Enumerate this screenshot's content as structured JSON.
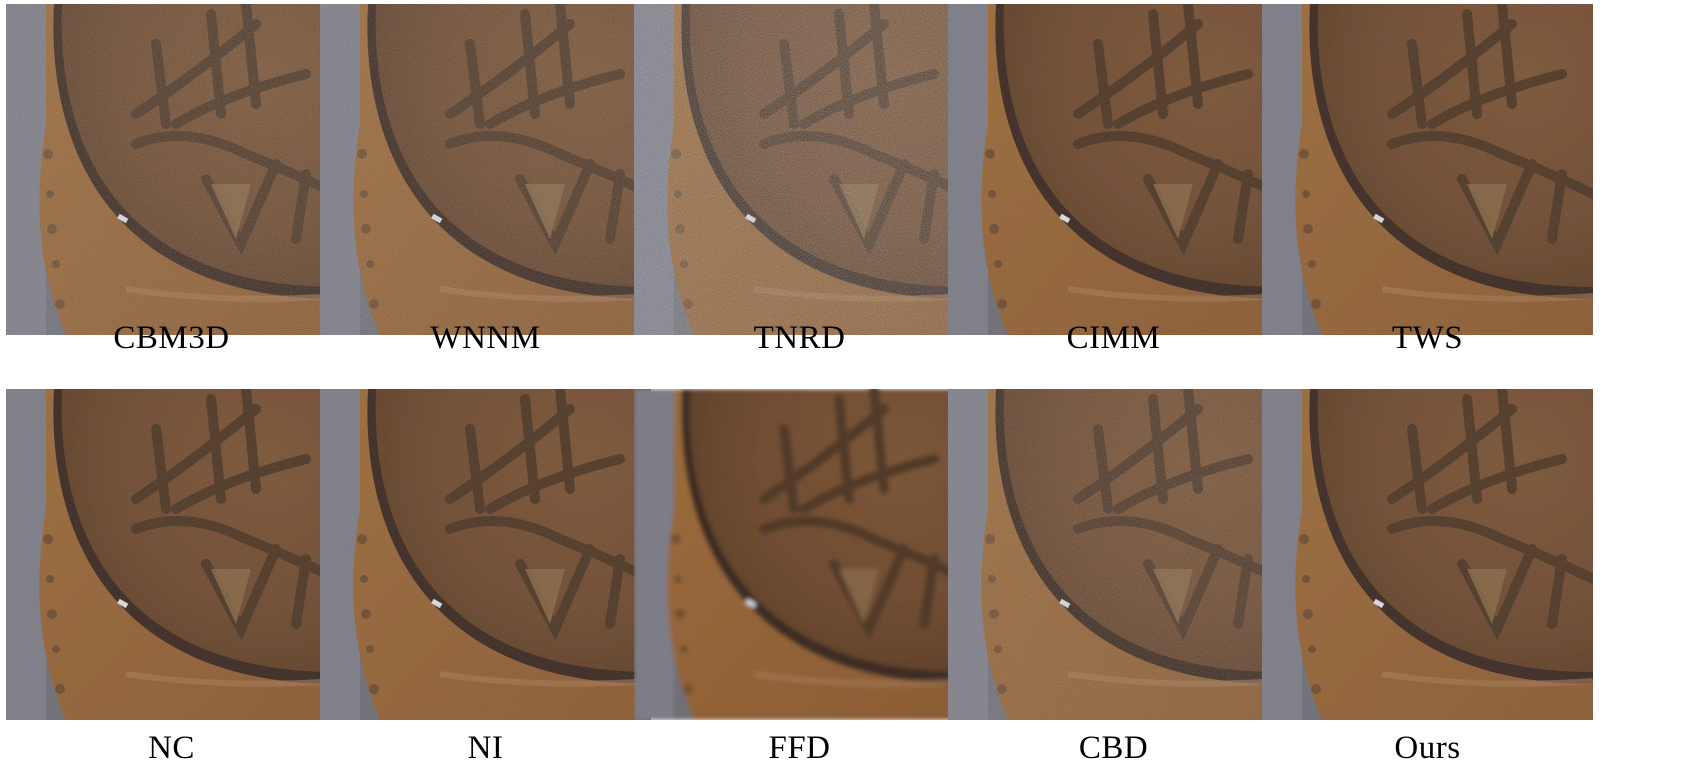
{
  "figure": {
    "rows": [
      {
        "panels": [
          {
            "label": "CBM3D",
            "variant": "moderate-noise"
          },
          {
            "label": "WNNM",
            "variant": "moderate-noise"
          },
          {
            "label": "TNRD",
            "variant": "heavy-noise"
          },
          {
            "label": "CIMM",
            "variant": "smooth"
          },
          {
            "label": "TWS",
            "variant": "smooth"
          }
        ]
      },
      {
        "panels": [
          {
            "label": "NC",
            "variant": "smooth"
          },
          {
            "label": "NI",
            "variant": "smooth"
          },
          {
            "label": "FFD",
            "variant": "blurred"
          },
          {
            "label": "CBD",
            "variant": "moderate-noise"
          },
          {
            "label": "Ours",
            "variant": "smooth"
          }
        ]
      }
    ],
    "colors": {
      "background": "#6e6e76",
      "coin_copper": "#8a5a32",
      "coin_inner": "#6e4a30",
      "rim_dark": "#3b2a20",
      "relief": "#4a3526",
      "highlight": "#d8d8e0"
    }
  }
}
